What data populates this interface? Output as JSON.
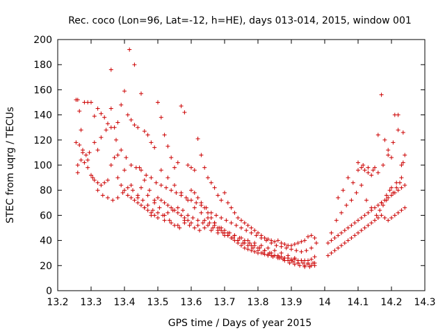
{
  "chart_data": {
    "type": "scatter",
    "title": "Rec. coco (Lon=96, Lat=-12, h=HE), days 013-014, 2015, window 001",
    "xlabel": "GPS time / Days of year 2015",
    "ylabel": "STEC from uqrg / TECUs",
    "xlim": [
      13.2,
      14.3
    ],
    "ylim": [
      0,
      200
    ],
    "xticks": [
      "13.2",
      "13.3",
      "13.4",
      "13.5",
      "13.6",
      "13.7",
      "13.8",
      "13.9",
      "14",
      "14.1",
      "14.2",
      "14.3"
    ],
    "yticks": [
      "0",
      "20",
      "40",
      "60",
      "80",
      "100",
      "120",
      "140",
      "160",
      "180",
      "200"
    ],
    "grid": false,
    "legend": "none",
    "marker": "plus",
    "color": "#cc0000",
    "series": [
      {
        "x": [
          13.255,
          13.26,
          13.265,
          13.27,
          13.28,
          13.29,
          13.3,
          13.31,
          13.32,
          13.33,
          13.34,
          13.35,
          13.36,
          13.37,
          13.38,
          13.39,
          13.4,
          13.41,
          13.42,
          13.43,
          13.44,
          13.45,
          13.46,
          13.47,
          13.48,
          13.49,
          13.5,
          13.51,
          13.52,
          13.53,
          13.54,
          13.55,
          13.56,
          13.57,
          13.58,
          13.59,
          13.6,
          13.61,
          13.62,
          13.63,
          13.64,
          13.65,
          13.66,
          13.67,
          13.68,
          13.69,
          13.7,
          13.71,
          13.72,
          13.73,
          13.74,
          13.75,
          13.76,
          13.77,
          13.78,
          13.79,
          13.8,
          13.81,
          13.82,
          13.83,
          13.84,
          13.85,
          13.86,
          13.87,
          13.88,
          13.89,
          13.9,
          13.91,
          13.92,
          13.93,
          13.94,
          13.95,
          13.96,
          13.97
        ],
        "y": [
          152,
          152,
          143,
          128,
          150,
          150,
          150,
          139,
          145,
          141,
          138,
          133,
          145,
          130,
          134,
          148,
          159,
          140,
          136,
          132,
          130,
          157,
          127,
          124,
          118,
          114,
          150,
          138,
          124,
          115,
          106,
          98,
          102,
          147,
          142,
          100,
          98,
          96,
          121,
          108,
          98,
          90,
          86,
          82,
          76,
          72,
          78,
          70,
          66,
          62,
          58,
          56,
          54,
          52,
          50,
          48,
          46,
          44,
          42,
          41,
          40,
          39,
          40,
          38,
          37,
          36,
          36,
          37,
          38,
          39,
          40,
          43,
          44,
          42
        ]
      },
      {
        "x": [
          13.255,
          13.265,
          13.275,
          13.285,
          13.295,
          13.31,
          13.32,
          13.33,
          13.345,
          13.36,
          13.375,
          13.39,
          13.405,
          13.42,
          13.435,
          13.45,
          13.465,
          13.48,
          13.495,
          13.51,
          13.525,
          13.54,
          13.555,
          13.57,
          13.585,
          13.6,
          13.615,
          13.63,
          13.645,
          13.66,
          13.675,
          13.69,
          13.705,
          13.72,
          13.735,
          13.75,
          13.765,
          13.78,
          13.795,
          13.81,
          13.825,
          13.84,
          13.855,
          13.87,
          13.885,
          13.9,
          13.915,
          13.93,
          13.945,
          13.96,
          13.975
        ],
        "y": [
          118,
          116,
          112,
          108,
          110,
          118,
          112,
          122,
          128,
          130,
          120,
          112,
          106,
          100,
          98,
          96,
          92,
          90,
          86,
          84,
          82,
          80,
          78,
          76,
          74,
          72,
          70,
          68,
          66,
          62,
          60,
          58,
          56,
          54,
          52,
          50,
          48,
          46,
          44,
          42,
          40,
          38,
          36,
          35,
          34,
          33,
          32,
          31,
          32,
          34,
          38
        ]
      },
      {
        "x": [
          13.26,
          13.27,
          13.28,
          13.29,
          13.3,
          13.31,
          13.32,
          13.33,
          13.34,
          13.35,
          13.36,
          13.37,
          13.38,
          13.39,
          13.4,
          13.41,
          13.42,
          13.43,
          13.44,
          13.45,
          13.46,
          13.47,
          13.48,
          13.49,
          13.5,
          13.51,
          13.52,
          13.53,
          13.54,
          13.55,
          13.56,
          13.57,
          13.58,
          13.59,
          13.6,
          13.61,
          13.62,
          13.63,
          13.64,
          13.65,
          13.66,
          13.67,
          13.68,
          13.69,
          13.7,
          13.71,
          13.72,
          13.73,
          13.74,
          13.75,
          13.76,
          13.77,
          13.78,
          13.79,
          13.8,
          13.81,
          13.82,
          13.83,
          13.84,
          13.85,
          13.86,
          13.87,
          13.88,
          13.89,
          13.9,
          13.91,
          13.92,
          13.93,
          13.94,
          13.95,
          13.96,
          13.97
        ],
        "y": [
          100,
          104,
          102,
          98,
          92,
          88,
          86,
          84,
          86,
          88,
          100,
          106,
          90,
          84,
          80,
          76,
          74,
          72,
          70,
          68,
          66,
          64,
          62,
          60,
          74,
          72,
          70,
          68,
          66,
          64,
          62,
          60,
          58,
          56,
          80,
          78,
          74,
          70,
          66,
          62,
          58,
          54,
          50,
          48,
          46,
          44,
          42,
          40,
          38,
          36,
          34,
          33,
          32,
          31,
          30,
          30,
          29,
          29,
          28,
          28,
          27,
          27,
          26,
          26,
          25,
          25,
          24,
          24,
          24,
          24,
          25,
          27
        ]
      },
      {
        "x": [
          13.26,
          13.275,
          13.29,
          13.305,
          13.32,
          13.335,
          13.35,
          13.365,
          13.38,
          13.395,
          13.41,
          13.425,
          13.44,
          13.455,
          13.47,
          13.485,
          13.5,
          13.515,
          13.53,
          13.545,
          13.56,
          13.575,
          13.59,
          13.605,
          13.62,
          13.635,
          13.65,
          13.665,
          13.68,
          13.695,
          13.71,
          13.725,
          13.74,
          13.755,
          13.77,
          13.785,
          13.8,
          13.815,
          13.83,
          13.845,
          13.86,
          13.875,
          13.89,
          13.905,
          13.92,
          13.935,
          13.95,
          13.965
        ],
        "y": [
          94,
          110,
          104,
          90,
          80,
          76,
          74,
          72,
          74,
          78,
          82,
          80,
          76,
          72,
          68,
          64,
          62,
          60,
          62,
          64,
          66,
          64,
          60,
          58,
          56,
          54,
          52,
          50,
          48,
          46,
          44,
          42,
          40,
          38,
          36,
          34,
          32,
          30,
          28,
          27,
          26,
          25,
          24,
          23,
          22,
          22,
          21,
          22
        ]
      },
      {
        "x": [
          13.36,
          13.38,
          13.4,
          13.42,
          13.44,
          13.46,
          13.48,
          13.5,
          13.52,
          13.54,
          13.56,
          13.58,
          13.6,
          13.62,
          13.64,
          13.66,
          13.68,
          13.7,
          13.72,
          13.74,
          13.76,
          13.78,
          13.8,
          13.82,
          13.84,
          13.86,
          13.88,
          13.9,
          13.92,
          13.94,
          13.96
        ],
        "y": [
          176,
          108,
          96,
          84,
          74,
          66,
          60,
          58,
          56,
          54,
          52,
          56,
          54,
          52,
          50,
          48,
          46,
          44,
          42,
          40,
          38,
          36,
          34,
          32,
          30,
          28,
          26,
          24,
          22,
          20,
          20
        ]
      },
      {
        "x": [
          13.415,
          13.43,
          13.445,
          13.46,
          13.475,
          13.49,
          13.505,
          13.52,
          13.535,
          13.55,
          13.565,
          13.58,
          13.595,
          13.61,
          13.625,
          13.64,
          13.655,
          13.67,
          13.685,
          13.7,
          13.715,
          13.73,
          13.745,
          13.76,
          13.775,
          13.79,
          13.805,
          13.82,
          13.835,
          13.85,
          13.865,
          13.88,
          13.895,
          13.91,
          13.925,
          13.94,
          13.955,
          13.97
        ],
        "y": [
          192,
          180,
          98,
          88,
          80,
          72,
          66,
          60,
          56,
          52,
          50,
          54,
          52,
          50,
          48,
          56,
          54,
          52,
          50,
          48,
          46,
          44,
          42,
          40,
          38,
          36,
          34,
          32,
          30,
          28,
          26,
          24,
          22,
          21,
          20,
          19,
          19,
          20
        ]
      },
      {
        "x": [
          13.45,
          13.47,
          13.49,
          13.51,
          13.53,
          13.55,
          13.57,
          13.59,
          13.61,
          13.63,
          13.65,
          13.67,
          13.69,
          13.71,
          13.73,
          13.75,
          13.77,
          13.79,
          13.81,
          13.83,
          13.85,
          13.87,
          13.89,
          13.91,
          13.93,
          13.95,
          13.97
        ],
        "y": [
          82,
          76,
          70,
          96,
          90,
          84,
          78,
          72,
          66,
          62,
          58,
          54,
          50,
          46,
          44,
          42,
          40,
          38,
          36,
          34,
          32,
          30,
          28,
          26,
          24,
          22,
          22
        ]
      },
      {
        "x": [
          14.01,
          14.02,
          14.03,
          14.04,
          14.05,
          14.06,
          14.07,
          14.08,
          14.09,
          14.1,
          14.11,
          14.12,
          14.13,
          14.14,
          14.15,
          14.16,
          14.17,
          14.18,
          14.19,
          14.2,
          14.21,
          14.22,
          14.23,
          14.24
        ],
        "y": [
          28,
          30,
          32,
          34,
          36,
          38,
          40,
          42,
          44,
          46,
          48,
          50,
          52,
          54,
          56,
          58,
          60,
          58,
          56,
          58,
          60,
          62,
          64,
          66
        ]
      },
      {
        "x": [
          14.01,
          14.02,
          14.03,
          14.04,
          14.05,
          14.06,
          14.07,
          14.08,
          14.09,
          14.1,
          14.11,
          14.12,
          14.13,
          14.14,
          14.15,
          14.16,
          14.17,
          14.18,
          14.19,
          14.2,
          14.21,
          14.22,
          14.23,
          14.24
        ],
        "y": [
          38,
          40,
          42,
          44,
          46,
          48,
          50,
          52,
          54,
          56,
          58,
          60,
          62,
          64,
          66,
          68,
          70,
          72,
          74,
          76,
          78,
          80,
          82,
          84
        ]
      },
      {
        "x": [
          14.02,
          14.035,
          14.05,
          14.065,
          14.08,
          14.095,
          14.11,
          14.125,
          14.14,
          14.155,
          14.17,
          14.185,
          14.2,
          14.215,
          14.23
        ],
        "y": [
          46,
          56,
          62,
          68,
          72,
          78,
          84,
          72,
          66,
          60,
          70,
          76,
          82,
          86,
          90
        ]
      },
      {
        "x": [
          14.04,
          14.055,
          14.07,
          14.085,
          14.1,
          14.115,
          14.13,
          14.145,
          14.16,
          14.175,
          14.19,
          14.205,
          14.22,
          14.235
        ],
        "y": [
          74,
          80,
          90,
          86,
          96,
          100,
          98,
          96,
          94,
          100,
          108,
          118,
          128,
          126
        ]
      },
      {
        "x": [
          14.1,
          14.11,
          14.12,
          14.13,
          14.14,
          14.15,
          14.16,
          14.17,
          14.18,
          14.19,
          14.2,
          14.21,
          14.22,
          14.23,
          14.24
        ],
        "y": [
          102,
          98,
          96,
          94,
          92,
          98,
          124,
          156,
          120,
          112,
          106,
          140,
          140,
          100,
          108
        ]
      },
      {
        "x": [
          14.165,
          14.175,
          14.185,
          14.195,
          14.205,
          14.215,
          14.225,
          14.235
        ],
        "y": [
          64,
          68,
          72,
          80,
          78,
          82,
          86,
          102
        ]
      }
    ]
  }
}
